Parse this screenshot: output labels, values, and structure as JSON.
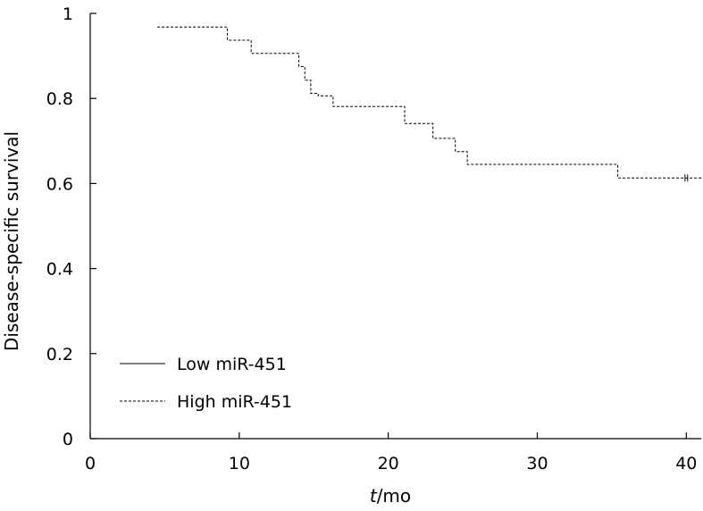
{
  "chart_data": {
    "type": "line",
    "xlabel_italic": "t",
    "xlabel_rest": "/mo",
    "ylabel": "Disease-specific survival",
    "xlim": [
      0,
      41
    ],
    "ylim": [
      0,
      1
    ],
    "x_ticks": [
      0,
      10,
      20,
      30,
      40
    ],
    "y_ticks": [
      0,
      0.2,
      0.4,
      0.6,
      0.8,
      1
    ],
    "y_tick_labels": [
      "0",
      "0.2",
      "0.4",
      "0.6",
      "0.8",
      "1"
    ],
    "grid": false,
    "legend_position": "bottom-left",
    "series": [
      {
        "name": "Low miR-451",
        "style": "solid",
        "x": [],
        "y": []
      },
      {
        "name": "High miR-451",
        "style": "dashed",
        "x": [
          4.5,
          9.2,
          9.2,
          10.8,
          10.8,
          14.0,
          14.0,
          14.4,
          14.4,
          14.8,
          14.8,
          15.3,
          15.3,
          16.3,
          16.3,
          21.1,
          21.1,
          23.0,
          23.0,
          24.5,
          24.5,
          25.3,
          25.3,
          35.4,
          35.4,
          41.0
        ],
        "y": [
          0.968,
          0.968,
          0.937,
          0.937,
          0.906,
          0.906,
          0.875,
          0.875,
          0.843,
          0.843,
          0.812,
          0.812,
          0.806,
          0.806,
          0.781,
          0.781,
          0.741,
          0.741,
          0.706,
          0.706,
          0.675,
          0.675,
          0.645,
          0.645,
          0.613,
          0.613
        ],
        "censored": [
          {
            "x": 40.0,
            "y": 0.613
          }
        ]
      }
    ]
  }
}
